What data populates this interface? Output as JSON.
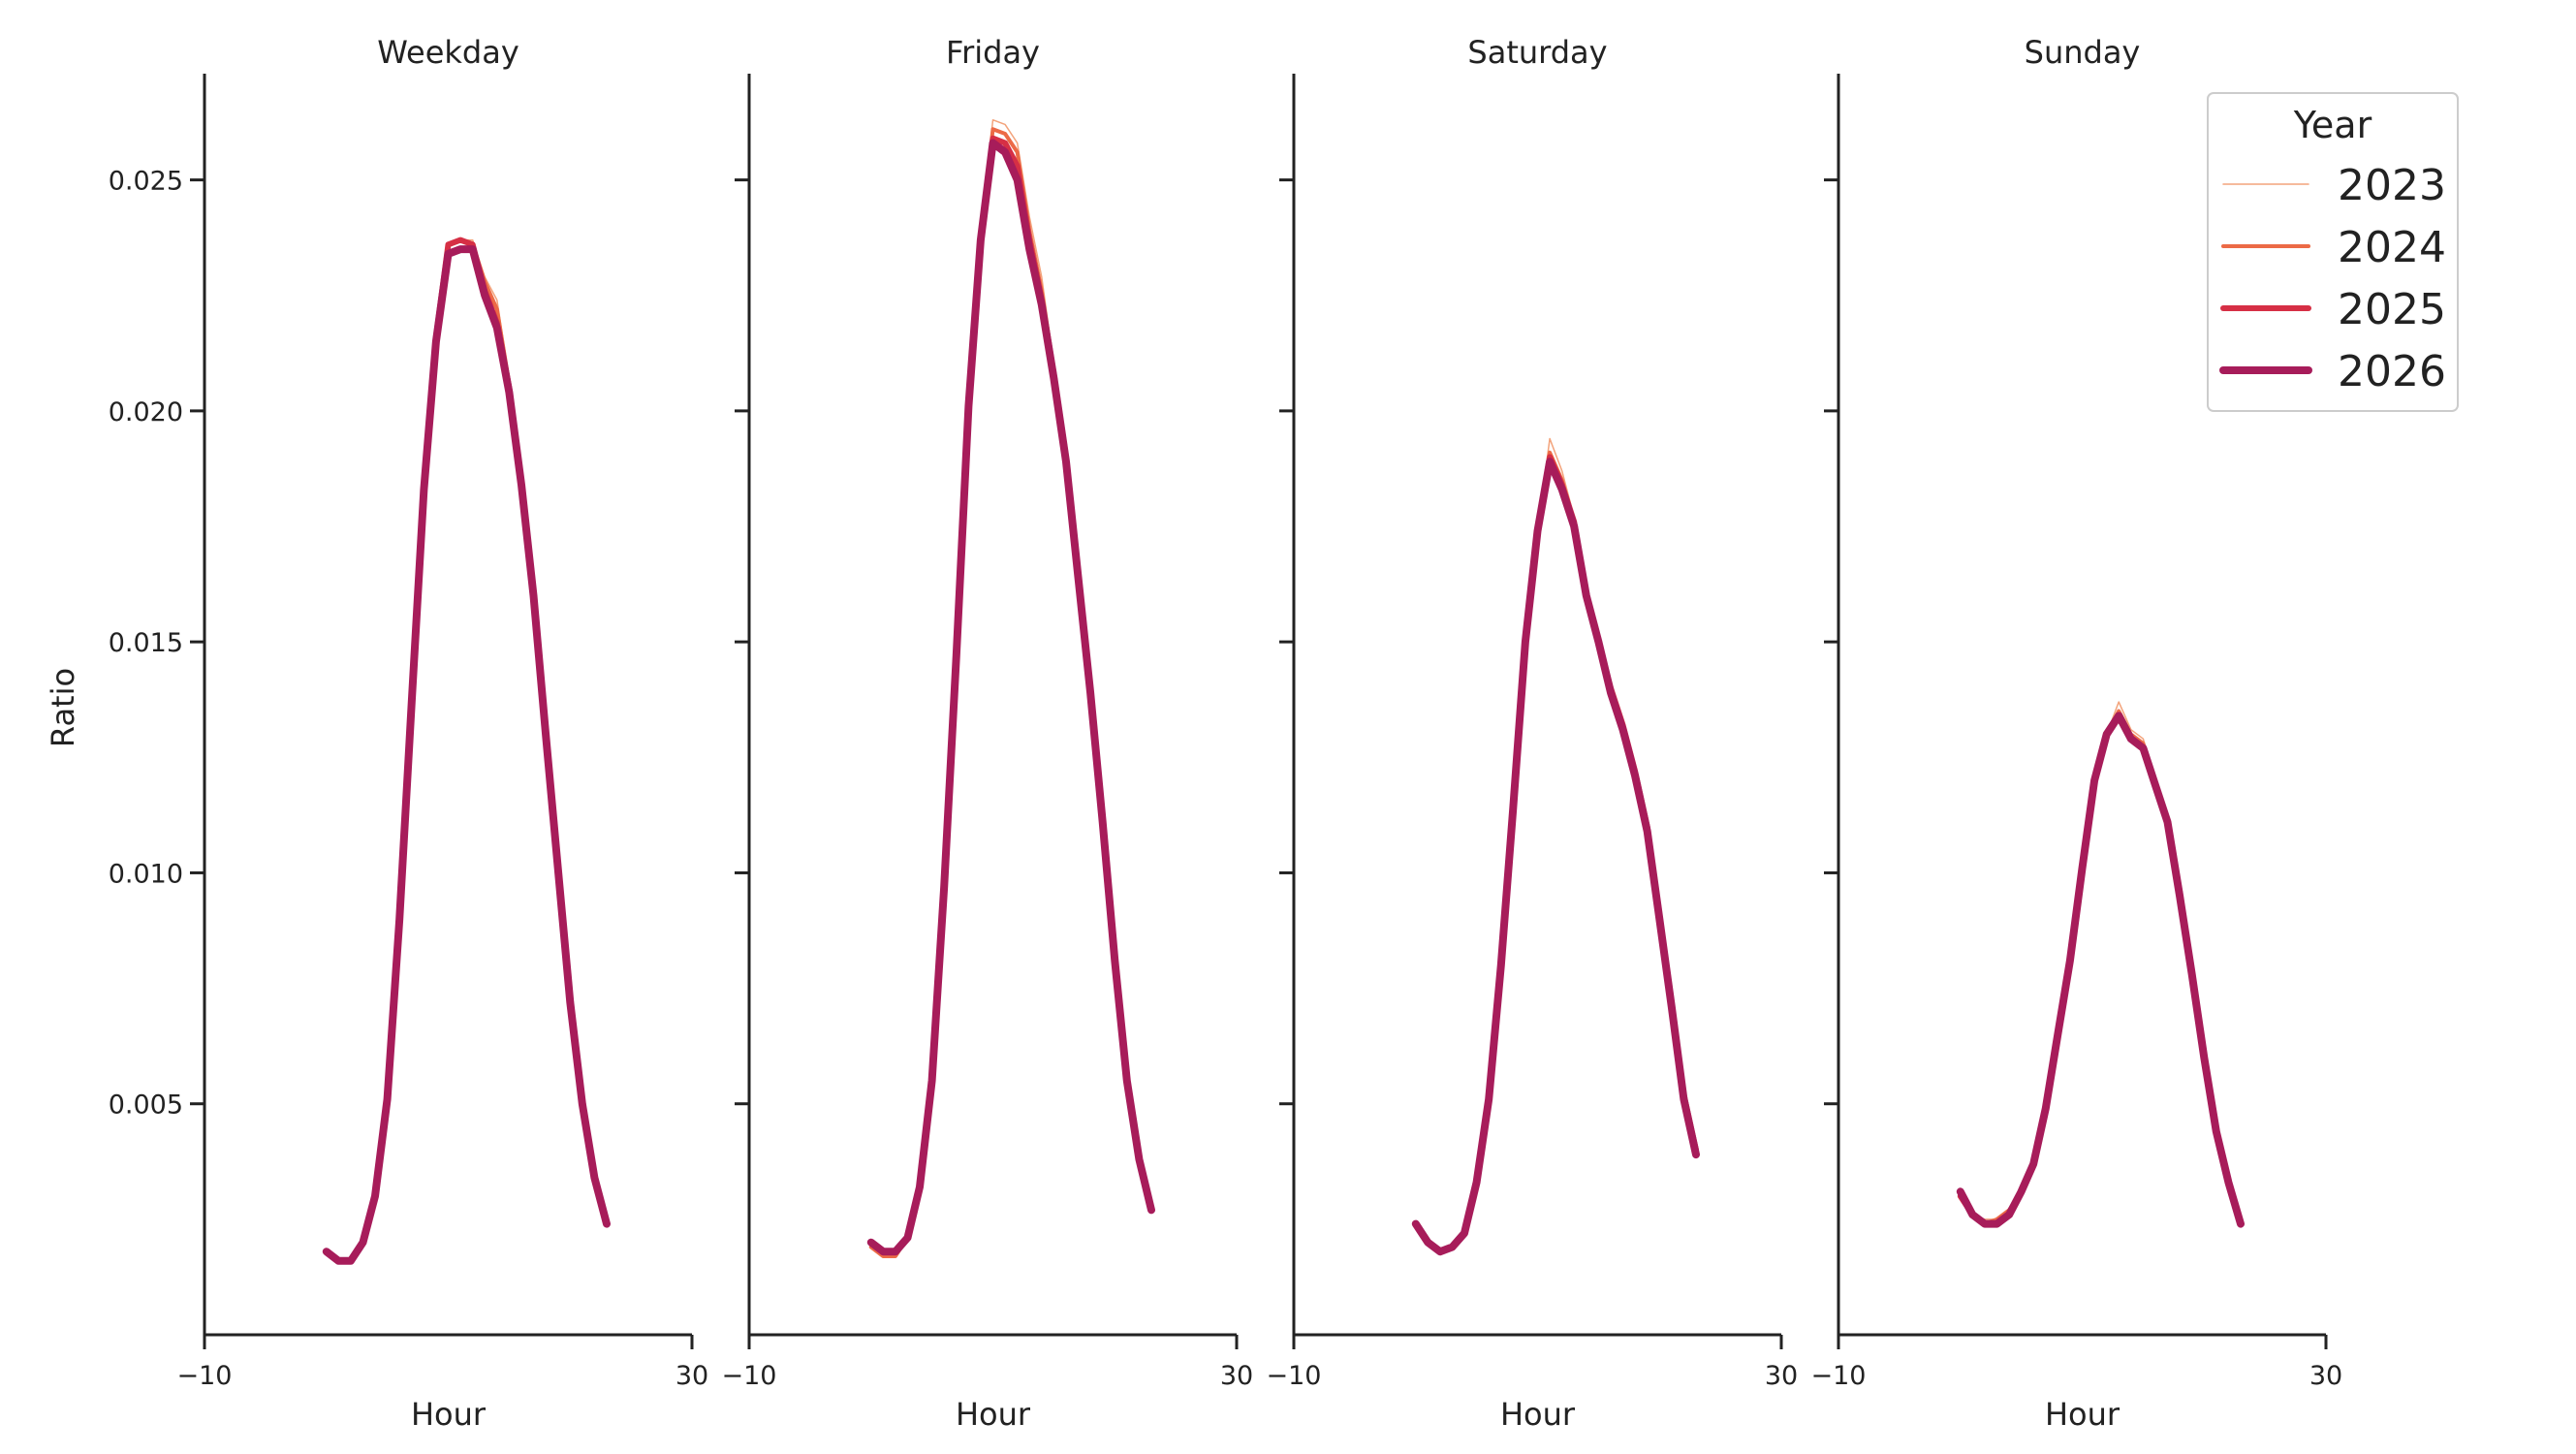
{
  "chart_data": {
    "type": "line",
    "ylabel": "Ratio",
    "yticks": [
      0.005,
      0.01,
      0.015,
      0.02,
      0.025
    ],
    "ytick_labels": [
      "0.005",
      "0.010",
      "0.015",
      "0.020",
      "0.025"
    ],
    "ylim": [
      0.0,
      0.0273
    ],
    "xlim": [
      -10,
      30
    ],
    "xticks": [
      -10,
      30
    ],
    "xtick_labels": [
      "−10",
      "30"
    ],
    "legend": {
      "title": "Year",
      "placement": "upper-right of last panel",
      "entries": [
        {
          "label": "2023",
          "color": "#f3a37b",
          "width": 1.5
        },
        {
          "label": "2024",
          "color": "#ec6a46",
          "width": 4
        },
        {
          "label": "2025",
          "color": "#d62f45",
          "width": 6
        },
        {
          "label": "2026",
          "color": "#a71c5a",
          "width": 8
        }
      ]
    },
    "panels": [
      {
        "title": "Weekday",
        "xlabel": "Hour",
        "hours": [
          0,
          1,
          2,
          3,
          4,
          5,
          6,
          7,
          8,
          9,
          10,
          11,
          12,
          13,
          14,
          15,
          16,
          17,
          18,
          19,
          20,
          21,
          22,
          23
        ],
        "series": [
          {
            "name": "2023",
            "values": [
              0.0018,
              0.0016,
              0.0016,
              0.002,
              0.003,
              0.0052,
              0.0091,
              0.0138,
              0.0184,
              0.0216,
              0.0236,
              0.0237,
              0.0237,
              0.0229,
              0.0224,
              0.0207,
              0.0187,
              0.0163,
              0.0132,
              0.0103,
              0.0073,
              0.0051,
              0.0035,
              0.0025
            ]
          },
          {
            "name": "2024",
            "values": [
              0.0018,
              0.0016,
              0.0016,
              0.002,
              0.003,
              0.0052,
              0.0091,
              0.0138,
              0.0184,
              0.0216,
              0.0236,
              0.0237,
              0.0236,
              0.0228,
              0.0222,
              0.0206,
              0.0186,
              0.0162,
              0.0131,
              0.0102,
              0.0073,
              0.0051,
              0.0035,
              0.0025
            ]
          },
          {
            "name": "2025",
            "values": [
              0.0018,
              0.0016,
              0.0016,
              0.002,
              0.003,
              0.0052,
              0.0091,
              0.0138,
              0.0184,
              0.0216,
              0.0236,
              0.0237,
              0.0236,
              0.0226,
              0.0219,
              0.0205,
              0.0185,
              0.0161,
              0.0131,
              0.0102,
              0.0072,
              0.005,
              0.0034,
              0.0024
            ]
          },
          {
            "name": "2026",
            "values": [
              0.0018,
              0.0016,
              0.0016,
              0.002,
              0.003,
              0.0051,
              0.009,
              0.0137,
              0.0183,
              0.0215,
              0.0234,
              0.0235,
              0.0235,
              0.0225,
              0.0218,
              0.0204,
              0.0184,
              0.016,
              0.013,
              0.0101,
              0.0072,
              0.005,
              0.0034,
              0.0024
            ]
          }
        ]
      },
      {
        "title": "Friday",
        "xlabel": "Hour",
        "hours": [
          0,
          1,
          2,
          3,
          4,
          5,
          6,
          7,
          8,
          9,
          10,
          11,
          12,
          13,
          14,
          15,
          16,
          17,
          18,
          19,
          20,
          21,
          22,
          23
        ],
        "series": [
          {
            "name": "2023",
            "values": [
              0.0019,
              0.0017,
              0.0017,
              0.0021,
              0.0031,
              0.0055,
              0.0097,
              0.0148,
              0.0203,
              0.0239,
              0.0263,
              0.0262,
              0.0258,
              0.0242,
              0.0229,
              0.021,
              0.019,
              0.0165,
              0.0139,
              0.0111,
              0.0082,
              0.0056,
              0.0038,
              0.0027
            ]
          },
          {
            "name": "2024",
            "values": [
              0.0019,
              0.0017,
              0.0017,
              0.0021,
              0.0031,
              0.0055,
              0.0097,
              0.0148,
              0.0202,
              0.0238,
              0.0261,
              0.026,
              0.0256,
              0.0239,
              0.0226,
              0.0209,
              0.019,
              0.0165,
              0.0139,
              0.0111,
              0.0081,
              0.0055,
              0.0038,
              0.0027
            ]
          },
          {
            "name": "2025",
            "values": [
              0.002,
              0.0018,
              0.0018,
              0.0021,
              0.0032,
              0.0055,
              0.0097,
              0.0148,
              0.0202,
              0.0238,
              0.0259,
              0.0258,
              0.0253,
              0.0237,
              0.0224,
              0.0208,
              0.019,
              0.0165,
              0.0139,
              0.0111,
              0.0081,
              0.0055,
              0.0038,
              0.0027
            ]
          },
          {
            "name": "2026",
            "values": [
              0.002,
              0.0018,
              0.0018,
              0.0021,
              0.0032,
              0.0055,
              0.0097,
              0.0147,
              0.0201,
              0.0237,
              0.0258,
              0.0256,
              0.025,
              0.0235,
              0.0223,
              0.0207,
              0.0189,
              0.0164,
              0.0139,
              0.0111,
              0.0081,
              0.0055,
              0.0038,
              0.0027
            ]
          }
        ]
      },
      {
        "title": "Saturday",
        "xlabel": "Hour",
        "hours": [
          0,
          1,
          2,
          3,
          4,
          5,
          6,
          7,
          8,
          9,
          10,
          11,
          12,
          13,
          14,
          15,
          16,
          17,
          18,
          19,
          20,
          21,
          22,
          23
        ],
        "series": [
          {
            "name": "2023",
            "values": [
              0.0024,
              0.002,
              0.0018,
              0.0019,
              0.0022,
              0.0033,
              0.0051,
              0.008,
              0.0114,
              0.015,
              0.0174,
              0.0194,
              0.0187,
              0.0177,
              0.016,
              0.015,
              0.014,
              0.0132,
              0.0122,
              0.011,
              0.0091,
              0.0072,
              0.0052,
              0.004
            ]
          },
          {
            "name": "2024",
            "values": [
              0.0024,
              0.002,
              0.0018,
              0.0019,
              0.0022,
              0.0033,
              0.0051,
              0.008,
              0.0114,
              0.015,
              0.0174,
              0.0191,
              0.0185,
              0.0176,
              0.016,
              0.015,
              0.014,
              0.0132,
              0.0122,
              0.011,
              0.0091,
              0.0072,
              0.0052,
              0.004
            ]
          },
          {
            "name": "2025",
            "values": [
              0.0024,
              0.002,
              0.0018,
              0.0019,
              0.0022,
              0.0033,
              0.0051,
              0.008,
              0.0114,
              0.015,
              0.0174,
              0.019,
              0.0184,
              0.0176,
              0.016,
              0.015,
              0.014,
              0.0132,
              0.0122,
              0.011,
              0.0091,
              0.0072,
              0.0052,
              0.004
            ]
          },
          {
            "name": "2026",
            "values": [
              0.0024,
              0.002,
              0.0018,
              0.0019,
              0.0022,
              0.0033,
              0.0051,
              0.008,
              0.0114,
              0.015,
              0.0174,
              0.0189,
              0.0183,
              0.0175,
              0.016,
              0.015,
              0.0139,
              0.0131,
              0.0121,
              0.0109,
              0.009,
              0.0071,
              0.0051,
              0.0039
            ]
          }
        ]
      },
      {
        "title": "Sunday",
        "xlabel": "Hour",
        "hours": [
          0,
          1,
          2,
          3,
          4,
          5,
          6,
          7,
          8,
          9,
          10,
          11,
          12,
          13,
          14,
          15,
          16,
          17,
          18,
          19,
          20,
          21,
          22,
          23
        ],
        "series": [
          {
            "name": "2023",
            "values": [
              0.003,
              0.0026,
              0.0025,
              0.0025,
              0.0027,
              0.0031,
              0.0037,
              0.0049,
              0.0065,
              0.0081,
              0.0101,
              0.012,
              0.013,
              0.0137,
              0.0131,
              0.0129,
              0.012,
              0.0111,
              0.0096,
              0.0078,
              0.006,
              0.0045,
              0.0033,
              0.0024
            ]
          },
          {
            "name": "2024",
            "values": [
              0.003,
              0.0026,
              0.0024,
              0.0025,
              0.0027,
              0.0031,
              0.0037,
              0.0049,
              0.0065,
              0.0081,
              0.0101,
              0.012,
              0.013,
              0.0135,
              0.013,
              0.0128,
              0.012,
              0.0111,
              0.0096,
              0.0078,
              0.006,
              0.0045,
              0.0033,
              0.0024
            ]
          },
          {
            "name": "2025",
            "values": [
              0.003,
              0.0026,
              0.0024,
              0.0024,
              0.0026,
              0.0031,
              0.0037,
              0.0049,
              0.0065,
              0.0081,
              0.0101,
              0.012,
              0.013,
              0.0134,
              0.0129,
              0.0127,
              0.0119,
              0.0111,
              0.0096,
              0.0078,
              0.006,
              0.0044,
              0.0033,
              0.0024
            ]
          },
          {
            "name": "2026",
            "values": [
              0.0031,
              0.0026,
              0.0024,
              0.0024,
              0.0026,
              0.0031,
              0.0037,
              0.0049,
              0.0065,
              0.0081,
              0.0101,
              0.012,
              0.013,
              0.0134,
              0.0129,
              0.0127,
              0.0119,
              0.0111,
              0.0095,
              0.0078,
              0.006,
              0.0044,
              0.0033,
              0.0024
            ]
          }
        ]
      }
    ]
  }
}
